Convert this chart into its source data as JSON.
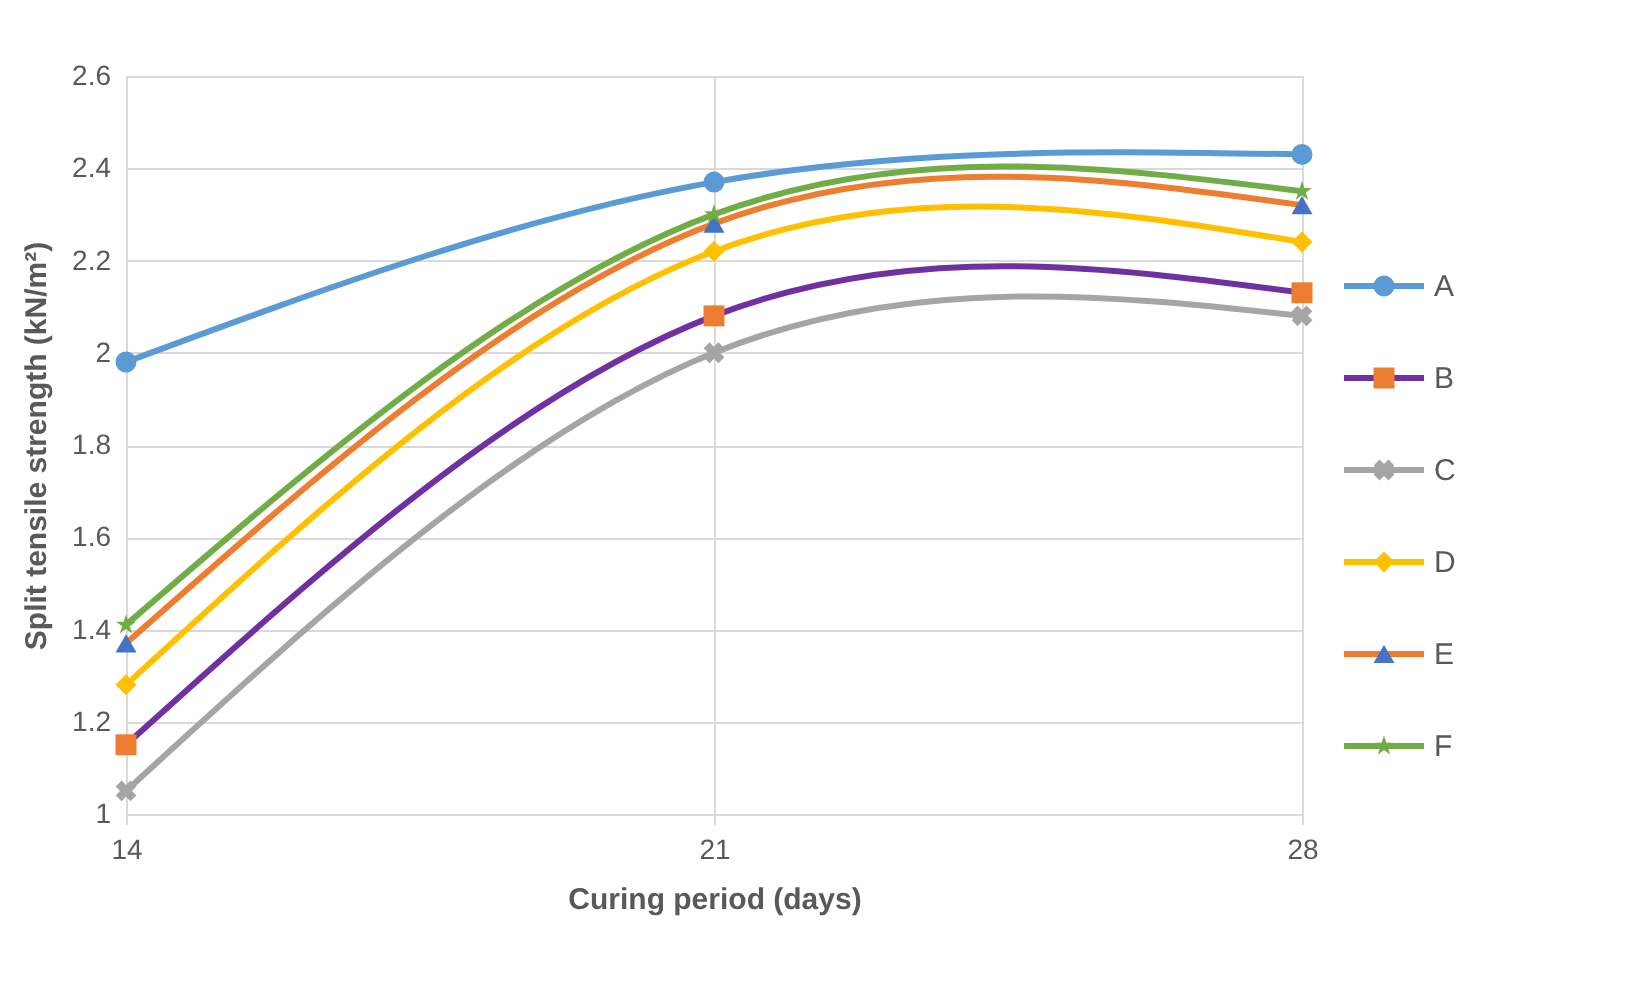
{
  "chart_data": {
    "type": "line",
    "xlabel": "Curing period (days)",
    "ylabel": "Split tensile strength (kN/m²)",
    "categories": [
      "14",
      "21",
      "28"
    ],
    "ylim": [
      1,
      2.6
    ],
    "yticks": [
      1,
      1.2,
      1.4,
      1.6,
      1.8,
      2,
      2.2,
      2.4,
      2.6
    ],
    "grid": true,
    "legend": "right",
    "series": [
      {
        "name": "A",
        "color": "#5b9bd5",
        "colors": [
          "#5b9bd5",
          "#5b9bd5",
          "#5b9bd5"
        ],
        "marker": "circle",
        "values": [
          1.98,
          2.37,
          2.43
        ]
      },
      {
        "name": "B",
        "color": "#7030a0",
        "colors": [
          "#ed7d31",
          "#ed7d31",
          "#ed7d31"
        ],
        "marker": "square",
        "values": [
          1.15,
          2.08,
          2.13
        ]
      },
      {
        "name": "C",
        "color": "#a5a5a5",
        "colors": [
          "#a5a5a5",
          "#a5a5a5",
          "#a5a5a5"
        ],
        "marker": "cross",
        "values": [
          1.05,
          2.0,
          2.08
        ]
      },
      {
        "name": "D",
        "color": "#ffc000",
        "colors": [
          "#ffc000",
          "#ffc000",
          "#ffc000"
        ],
        "marker": "diamond",
        "values": [
          1.28,
          2.22,
          2.24
        ]
      },
      {
        "name": "E",
        "color": "#ed7d31",
        "colors": [
          "#4472c4",
          "#4472c4",
          "#4472c4"
        ],
        "marker": "triangle",
        "values": [
          1.37,
          2.28,
          2.32
        ]
      },
      {
        "name": "F",
        "color": "#70ad47",
        "colors": [
          "#70ad47",
          "#70ad47",
          "#70ad47"
        ],
        "marker": "star",
        "values": [
          1.41,
          2.3,
          2.35
        ]
      }
    ]
  }
}
